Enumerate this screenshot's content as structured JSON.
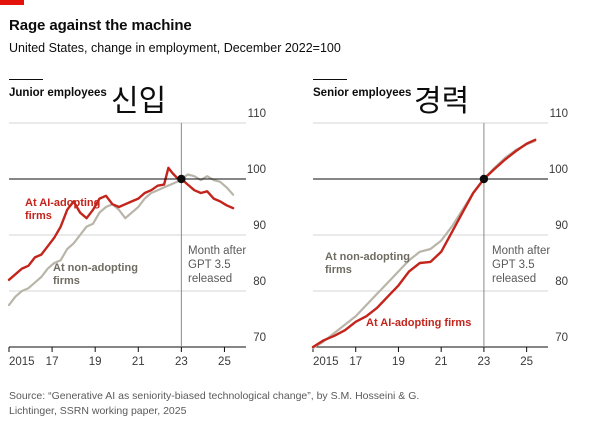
{
  "header": {
    "title": "Rage against the machine",
    "subtitle": "United States, change in employment, December 2022=100"
  },
  "source": "Source: “Generative AI as seniority-biased technological change”, by S.M. Hosseini & G. Lichtinger, SSRN working paper, 2025",
  "colors": {
    "ai_adopting": "#c3241b",
    "non_adopting": "#b9b5a8",
    "brand_red": "#e3120b"
  },
  "chart_data": [
    {
      "type": "line",
      "title": "Junior employees",
      "title_ko": "신입",
      "ylim": [
        70,
        110
      ],
      "yticks": [
        70,
        80,
        90,
        100,
        110
      ],
      "xlim": [
        2015,
        2026
      ],
      "xticks": [
        2015,
        2017,
        2019,
        2021,
        2023,
        2025
      ],
      "xtick_labels": [
        "2015",
        "17",
        "19",
        "21",
        "23",
        "25"
      ],
      "reference_y": 100,
      "annotation": {
        "text": [
          "Month after",
          "GPT 3.5",
          "released"
        ],
        "x": 2023.0
      },
      "marker": {
        "x": 2023.0,
        "y": 100
      },
      "series": [
        {
          "name": "At non-adopting firms",
          "label_lines": [
            "At non-adopting",
            "firms"
          ],
          "color_key": "non_adopting",
          "x": [
            2015.0,
            2015.3,
            2015.6,
            2015.9,
            2016.2,
            2016.5,
            2016.8,
            2017.1,
            2017.4,
            2017.7,
            2018.0,
            2018.3,
            2018.6,
            2018.9,
            2019.2,
            2019.5,
            2019.8,
            2020.1,
            2020.4,
            2020.7,
            2021.0,
            2021.3,
            2021.6,
            2021.9,
            2022.2,
            2022.5,
            2022.8,
            2023.0,
            2023.3,
            2023.6,
            2023.9,
            2024.2,
            2024.5,
            2024.8,
            2025.1,
            2025.4
          ],
          "y": [
            77.5,
            79.0,
            80.0,
            80.5,
            81.5,
            82.5,
            84.0,
            85.0,
            85.5,
            87.5,
            88.5,
            90.0,
            91.5,
            92.0,
            94.0,
            95.0,
            95.5,
            94.5,
            93.0,
            94.0,
            95.0,
            96.5,
            97.5,
            98.0,
            98.5,
            99.0,
            99.5,
            100.0,
            100.8,
            100.5,
            99.8,
            100.5,
            99.8,
            99.5,
            98.5,
            97.2
          ]
        },
        {
          "name": "At AI-adopting firms",
          "label_lines": [
            "At AI-adopting",
            "firms"
          ],
          "color_key": "ai_adopting",
          "x": [
            2015.0,
            2015.3,
            2015.6,
            2015.9,
            2016.2,
            2016.5,
            2016.8,
            2017.1,
            2017.4,
            2017.7,
            2018.0,
            2018.3,
            2018.6,
            2018.9,
            2019.2,
            2019.5,
            2019.8,
            2020.1,
            2020.4,
            2020.7,
            2021.0,
            2021.3,
            2021.6,
            2021.9,
            2022.2,
            2022.4,
            2022.6,
            2022.8,
            2023.0,
            2023.3,
            2023.6,
            2023.9,
            2024.2,
            2024.5,
            2024.8,
            2025.1,
            2025.4
          ],
          "y": [
            82.0,
            83.0,
            84.0,
            84.5,
            86.0,
            86.5,
            88.0,
            89.5,
            91.5,
            94.5,
            96.0,
            94.0,
            93.0,
            94.5,
            96.5,
            97.0,
            95.5,
            95.0,
            95.5,
            96.0,
            96.5,
            97.5,
            98.0,
            98.8,
            99.0,
            102.0,
            101.0,
            100.2,
            100.0,
            99.0,
            98.0,
            97.5,
            97.8,
            96.5,
            96.0,
            95.3,
            94.8
          ]
        }
      ]
    },
    {
      "type": "line",
      "title": "Senior employees",
      "title_ko": "경력",
      "ylim": [
        70,
        110
      ],
      "yticks": [
        70,
        80,
        90,
        100,
        110
      ],
      "xlim": [
        2015,
        2026
      ],
      "xticks": [
        2015,
        2017,
        2019,
        2021,
        2023,
        2025
      ],
      "xtick_labels": [
        "2015",
        "17",
        "19",
        "21",
        "23",
        "25"
      ],
      "reference_y": 100,
      "annotation": {
        "text": [
          "Month after",
          "GPT 3.5",
          "released"
        ],
        "x": 2023.0
      },
      "marker": {
        "x": 2023.0,
        "y": 100
      },
      "series": [
        {
          "name": "At non-adopting firms",
          "label_lines": [
            "At non-adopting",
            "firms"
          ],
          "color_key": "non_adopting",
          "x": [
            2015.0,
            2015.5,
            2016.0,
            2016.5,
            2017.0,
            2017.5,
            2018.0,
            2018.5,
            2019.0,
            2019.5,
            2020.0,
            2020.5,
            2021.0,
            2021.5,
            2022.0,
            2022.5,
            2023.0,
            2023.5,
            2024.0,
            2024.5,
            2025.0,
            2025.4
          ],
          "y": [
            69.8,
            71.0,
            72.5,
            74.0,
            75.5,
            77.5,
            79.5,
            81.5,
            83.5,
            85.5,
            87.0,
            87.5,
            89.0,
            91.5,
            94.5,
            97.5,
            100.0,
            102.0,
            103.8,
            105.2,
            106.2,
            106.8
          ]
        },
        {
          "name": "At AI-adopting firms",
          "label_lines": [
            "At AI-adopting firms"
          ],
          "color_key": "ai_adopting",
          "x": [
            2015.0,
            2015.5,
            2016.0,
            2016.5,
            2017.0,
            2017.5,
            2018.0,
            2018.5,
            2019.0,
            2019.5,
            2020.0,
            2020.5,
            2021.0,
            2021.5,
            2022.0,
            2022.5,
            2023.0,
            2023.5,
            2024.0,
            2024.5,
            2025.0,
            2025.4
          ],
          "y": [
            70.0,
            71.2,
            72.0,
            73.0,
            74.5,
            75.5,
            77.0,
            79.0,
            81.0,
            83.5,
            85.0,
            85.2,
            87.0,
            90.5,
            94.0,
            97.5,
            100.0,
            101.8,
            103.5,
            105.0,
            106.3,
            107.0
          ]
        }
      ]
    }
  ]
}
